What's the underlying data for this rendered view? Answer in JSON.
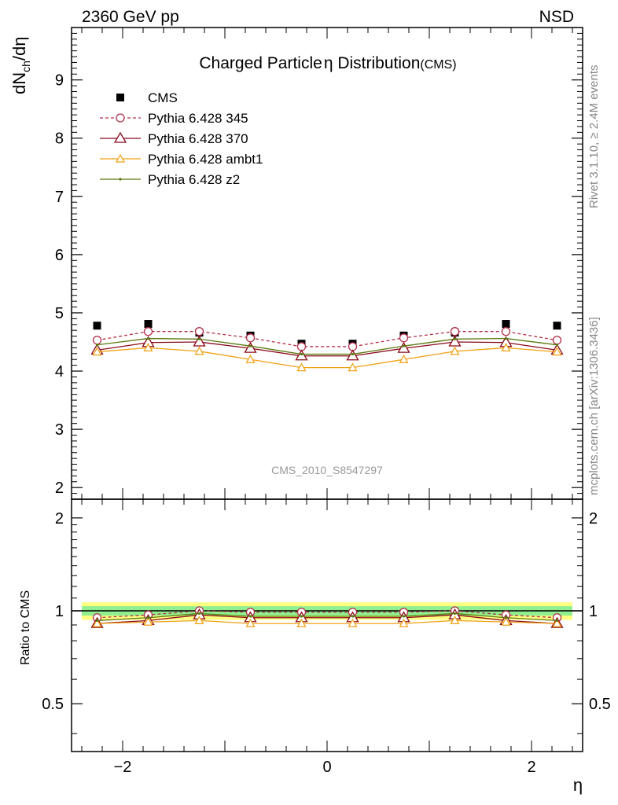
{
  "header": {
    "energy_label": "2360 GeV pp",
    "process_label": "NSD",
    "title": "Charged Particle",
    "title_eta": "η",
    "title_rest": " Distribution",
    "title_suffix": "(CMS)",
    "analysis_id": "CMS_2010_S8547297",
    "side_top": "Rivet 3.1.10, ≥ 2.4M events",
    "side_bottom": "mcplots.cern.ch [arXiv:1306.3436]"
  },
  "chart_data": [
    {
      "type": "scatter",
      "panel": "main",
      "ylabel": "dN_ch/dη",
      "xlim": [
        -2.5,
        2.5
      ],
      "ylim": [
        1.8,
        9.9
      ],
      "yticks": [
        2,
        3,
        4,
        5,
        6,
        7,
        8,
        9
      ],
      "grid": false,
      "legend_position": "top-left",
      "x": [
        -2.25,
        -1.75,
        -1.25,
        -0.75,
        -0.25,
        0.25,
        0.75,
        1.25,
        1.75,
        2.25
      ],
      "series": [
        {
          "name": "CMS",
          "style": "data",
          "color": "#000000",
          "values": [
            4.78,
            4.81,
            4.66,
            4.61,
            4.47,
            4.47,
            4.61,
            4.66,
            4.81,
            4.78
          ]
        },
        {
          "name": "Pythia 6.428 345",
          "style": "circle-dashed",
          "color": "#b0304a",
          "values": [
            4.53,
            4.68,
            4.68,
            4.57,
            4.42,
            4.42,
            4.57,
            4.68,
            4.68,
            4.53
          ]
        },
        {
          "name": "Pythia 6.428 370",
          "style": "triangle-solid",
          "color": "#8b0a1a",
          "values": [
            4.36,
            4.49,
            4.5,
            4.39,
            4.26,
            4.26,
            4.39,
            4.5,
            4.49,
            4.36
          ]
        },
        {
          "name": "Pythia 6.428 ambt1",
          "style": "small-triangle",
          "color": "#f0a010",
          "values": [
            4.33,
            4.4,
            4.34,
            4.2,
            4.06,
            4.06,
            4.2,
            4.34,
            4.4,
            4.33
          ]
        },
        {
          "name": "Pythia 6.428 z2",
          "style": "dot-solid",
          "color": "#5a7a10",
          "values": [
            4.45,
            4.56,
            4.55,
            4.43,
            4.29,
            4.29,
            4.43,
            4.55,
            4.56,
            4.45
          ]
        }
      ]
    },
    {
      "type": "scatter",
      "panel": "ratio",
      "ylabel": "Ratio to CMS",
      "xlabel": "η",
      "xlim": [
        -2.5,
        2.5
      ],
      "ylim": [
        0.35,
        2.3
      ],
      "yscale": "log",
      "yticks": [
        0.5,
        1,
        2
      ],
      "xticks": [
        -2,
        0,
        2
      ],
      "band_inner": 0.035,
      "band_outer": 0.065,
      "x": [
        -2.25,
        -1.75,
        -1.25,
        -0.75,
        -0.25,
        0.25,
        0.75,
        1.25,
        1.75,
        2.25
      ],
      "series": [
        {
          "name": "Pythia 6.428 345",
          "values": [
            0.95,
            0.97,
            1.0,
            0.99,
            0.99,
            0.99,
            0.99,
            1.0,
            0.97,
            0.95
          ]
        },
        {
          "name": "Pythia 6.428 370",
          "values": [
            0.91,
            0.93,
            0.97,
            0.95,
            0.95,
            0.95,
            0.95,
            0.97,
            0.93,
            0.91
          ]
        },
        {
          "name": "Pythia 6.428 ambt1",
          "values": [
            0.91,
            0.92,
            0.93,
            0.91,
            0.91,
            0.91,
            0.91,
            0.93,
            0.92,
            0.91
          ]
        },
        {
          "name": "Pythia 6.428 z2",
          "values": [
            0.93,
            0.95,
            0.98,
            0.96,
            0.96,
            0.96,
            0.96,
            0.98,
            0.95,
            0.93
          ]
        }
      ]
    }
  ]
}
